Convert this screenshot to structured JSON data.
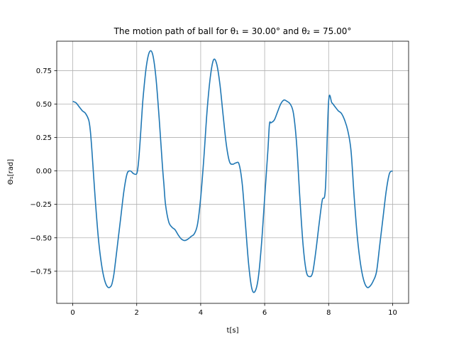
{
  "chart_data": {
    "type": "line",
    "title": "The motion path of ball for θ₁ = 30.00° and θ₂ = 75.00°",
    "xlabel": "t[s]",
    "ylabel": "Θ₁[rad]",
    "xlim": [
      -0.5,
      10.5
    ],
    "ylim": [
      -0.99,
      0.97
    ],
    "grid": true,
    "x_ticks": [
      0,
      2,
      4,
      6,
      8,
      10
    ],
    "x_tick_labels": [
      "0",
      "2",
      "4",
      "6",
      "8",
      "10"
    ],
    "y_ticks": [
      0.75,
      0.5,
      0.25,
      0.0,
      -0.25,
      -0.5,
      -0.75
    ],
    "y_tick_labels": [
      "0.75",
      "0.50",
      "0.25",
      "0.00",
      "−0.25",
      "−0.50",
      "−0.75"
    ],
    "line_color": "#1f77b4",
    "series": [
      {
        "x": [
          0.0,
          0.1,
          0.2,
          0.3,
          0.4,
          0.5,
          0.55,
          0.6,
          0.7,
          0.8,
          0.9,
          1.0,
          1.1,
          1.2,
          1.25,
          1.3,
          1.4,
          1.5,
          1.6,
          1.7,
          1.8,
          1.9,
          2.0,
          2.05,
          2.1,
          2.15,
          2.2,
          2.3,
          2.4,
          2.5,
          2.6,
          2.7,
          2.8,
          2.85,
          2.9,
          3.0,
          3.1,
          3.2,
          3.3,
          3.4,
          3.5,
          3.6,
          3.7,
          3.8,
          3.9,
          4.0,
          4.1,
          4.2,
          4.3,
          4.4,
          4.5,
          4.6,
          4.7,
          4.8,
          4.9,
          5.0,
          5.1,
          5.2,
          5.3,
          5.4,
          5.5,
          5.6,
          5.7,
          5.8,
          5.9,
          6.0,
          6.1,
          6.15,
          6.2,
          6.3,
          6.4,
          6.5,
          6.6,
          6.7,
          6.8,
          6.9,
          7.0,
          7.1,
          7.2,
          7.3,
          7.4,
          7.5,
          7.6,
          7.7,
          7.8,
          7.9,
          8.0,
          8.1,
          8.2,
          8.3,
          8.4,
          8.5,
          8.6,
          8.7,
          8.8,
          8.9,
          9.0,
          9.1,
          9.2,
          9.3,
          9.4,
          9.5,
          9.6,
          9.7,
          9.8,
          9.9,
          10.0
        ],
        "y": [
          0.52,
          0.51,
          0.48,
          0.45,
          0.43,
          0.38,
          0.3,
          0.15,
          -0.2,
          -0.5,
          -0.7,
          -0.82,
          -0.87,
          -0.86,
          -0.82,
          -0.75,
          -0.55,
          -0.35,
          -0.15,
          -0.02,
          0.0,
          -0.02,
          -0.02,
          0.05,
          0.2,
          0.38,
          0.55,
          0.78,
          0.89,
          0.87,
          0.7,
          0.4,
          0.05,
          -0.1,
          -0.25,
          -0.38,
          -0.42,
          -0.44,
          -0.48,
          -0.51,
          -0.52,
          -0.51,
          -0.49,
          -0.47,
          -0.4,
          -0.2,
          0.1,
          0.45,
          0.7,
          0.83,
          0.8,
          0.65,
          0.42,
          0.2,
          0.07,
          0.05,
          0.06,
          0.05,
          -0.1,
          -0.4,
          -0.7,
          -0.88,
          -0.9,
          -0.8,
          -0.55,
          -0.2,
          0.15,
          0.35,
          0.36,
          0.38,
          0.44,
          0.5,
          0.53,
          0.52,
          0.5,
          0.43,
          0.2,
          -0.2,
          -0.55,
          -0.75,
          -0.79,
          -0.76,
          -0.6,
          -0.4,
          -0.22,
          -0.13,
          0.52,
          0.51,
          0.48,
          0.45,
          0.43,
          0.38,
          0.3,
          0.15,
          -0.2,
          -0.5,
          -0.7,
          -0.82,
          -0.87,
          -0.86,
          -0.82,
          -0.75,
          -0.55,
          -0.35,
          -0.15,
          -0.02,
          0.0
        ]
      }
    ]
  }
}
